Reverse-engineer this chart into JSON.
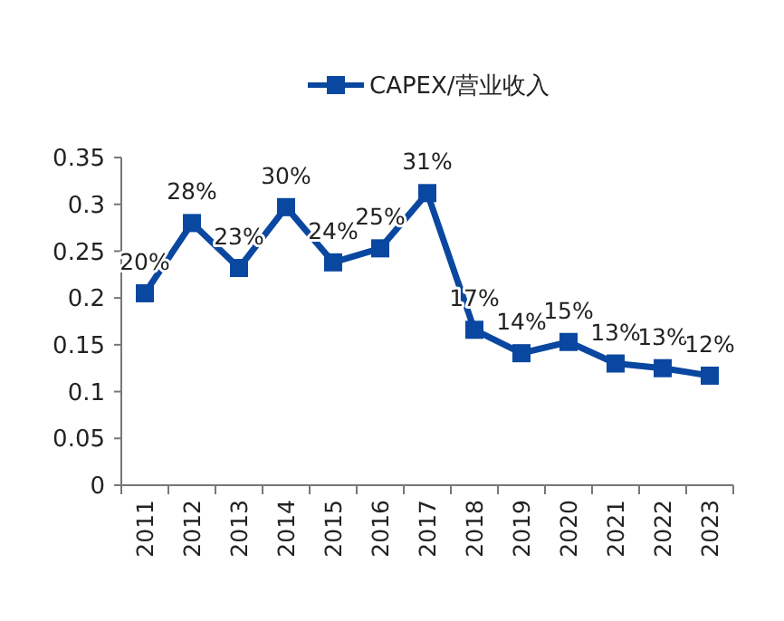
{
  "chart_data": {
    "type": "line",
    "categories": [
      "2011",
      "2012",
      "2013",
      "2014",
      "2015",
      "2016",
      "2017",
      "2018",
      "2019",
      "2020",
      "2021",
      "2022",
      "2023"
    ],
    "series": [
      {
        "name": "CAPEX/营业收入",
        "color": "#0a47a0",
        "values": [
          0.205,
          0.28,
          0.232,
          0.297,
          0.238,
          0.253,
          0.312,
          0.166,
          0.141,
          0.153,
          0.13,
          0.125,
          0.117
        ],
        "value_labels": [
          "20%",
          "28%",
          "23%",
          "30%",
          "24%",
          "25%",
          "31%",
          "17%",
          "14%",
          "15%",
          "13%",
          "13%",
          "12%"
        ]
      }
    ],
    "ylim": [
      0,
      0.35
    ],
    "yticks": [
      0,
      0.05,
      0.1,
      0.15,
      0.2,
      0.25,
      0.3,
      0.35
    ],
    "grid": false,
    "legend": "top",
    "marker": "square",
    "line_style": "solid"
  }
}
